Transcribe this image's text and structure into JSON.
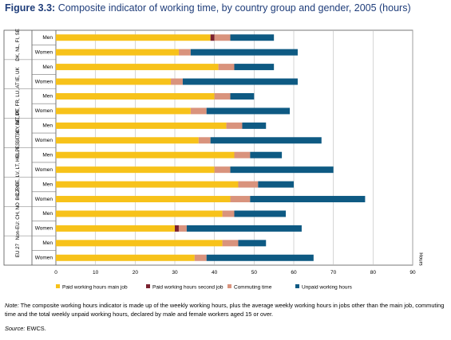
{
  "figure": {
    "number": "Figure 3.3:",
    "title": "Composite indicator of working time, by country group and gender, 2005 (hours)"
  },
  "note": {
    "lead": "Note:",
    "text": " The composite working hours indicator is made up of the weekly working hours, plus the average weekly working hours in jobs other than the main job, commuting time and the total weekly unpaid working hours, declared by male and female workers aged 15 or over."
  },
  "source": {
    "lead": "Source:",
    "text": " EWCS."
  },
  "chart_data": {
    "type": "bar",
    "orientation": "horizontal",
    "stacked": true,
    "xlabel": "Hours",
    "xlim": [
      0,
      90
    ],
    "xticks": [
      0,
      10,
      20,
      30,
      40,
      50,
      60,
      70,
      80,
      90
    ],
    "grid": true,
    "legend_position": "bottom",
    "groups": [
      {
        "label": "DK, NL, FI, SE",
        "categories": [
          "Men",
          "Women"
        ]
      },
      {
        "label": "IE, UK",
        "categories": [
          "Men",
          "Women"
        ]
      },
      {
        "label": "BE, DE, FR, LU, AT",
        "categories": [
          "Men",
          "Women"
        ]
      },
      {
        "label": "EL, ES, IT, CY, MT, PT",
        "categories": [
          "Men",
          "Women"
        ]
      },
      {
        "label": "CZ, EE, LV, LT, HU, PL, SI, SK",
        "categories": [
          "Men",
          "Women"
        ]
      },
      {
        "label": "BG, RO",
        "categories": [
          "Men",
          "Women"
        ]
      },
      {
        "label": "Non-EU: CH, NO",
        "categories": [
          "Men",
          "Women"
        ]
      },
      {
        "label": "EU 27",
        "categories": [
          "Men",
          "Women"
        ]
      }
    ],
    "series": [
      {
        "name": "Paid working hours main job",
        "color": "#f7c21a",
        "values": [
          39,
          31,
          41,
          29,
          40,
          34,
          43,
          36,
          45,
          40,
          46,
          44,
          42,
          30,
          42,
          35
        ]
      },
      {
        "name": "Paid working hours second job",
        "color": "#7a2230",
        "values": [
          1,
          0,
          0,
          0,
          0,
          0,
          0,
          0,
          0,
          0,
          0,
          0,
          0,
          1,
          0,
          0
        ]
      },
      {
        "name": "Commuting time",
        "color": "#d9937d",
        "values": [
          4,
          3,
          4,
          3,
          4,
          4,
          4,
          3,
          4,
          4,
          5,
          5,
          3,
          2,
          4,
          3
        ]
      },
      {
        "name": "Unpaid working hours",
        "color": "#0e5a83",
        "values": [
          11,
          27,
          10,
          29,
          6,
          21,
          6,
          28,
          8,
          26,
          9,
          29,
          13,
          29,
          7,
          27
        ]
      }
    ]
  }
}
